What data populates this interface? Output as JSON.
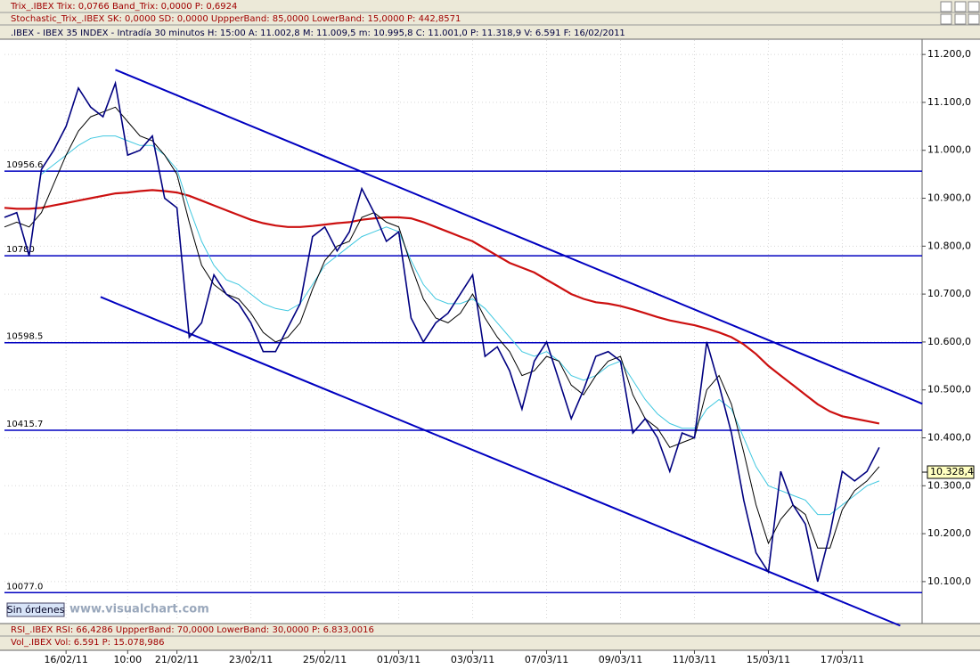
{
  "chart_data": {
    "type": "line",
    "header": {
      "trix": "Trix_.IBEX Trix: 0,0766  Band_Trix: 0,0000  P: 0,6924",
      "stochastic": "Stochastic_Trix_.IBEX SK: 0,0000  SD: 0,0000  UppperBand: 85,0000  LowerBand: 15,0000  P: 442,8571",
      "instrument": ".IBEX - IBEX 35 INDEX - Intradía 30 minutos  H: 15:00  A: 11.002,8  M: 11.009,5  m: 10.995,8  C: 11.001,0  P: 11.318,9  V: 6.591  F: 16/02/2011"
    },
    "footer": {
      "orders": "Sin órdenes",
      "site": "www.visualchart.com",
      "rsi": "RSI_.IBEX RSI: 66,4286  UppperBand: 70,0000  LowerBand: 30,0000  P: 6.833,0016",
      "volume": "Vol_.IBEX Vol: 6.591  P: 15.078,986"
    },
    "categories": [
      null,
      null,
      null,
      null,
      null,
      "16/02/11",
      null,
      null,
      null,
      null,
      "10:00",
      null,
      null,
      null,
      "21/02/11",
      null,
      null,
      null,
      null,
      null,
      "23/02/11",
      null,
      null,
      null,
      null,
      null,
      "25/02/11",
      null,
      null,
      null,
      null,
      null,
      "01/03/11",
      null,
      null,
      null,
      null,
      null,
      "03/03/11",
      null,
      null,
      null,
      null,
      null,
      "07/03/11",
      null,
      null,
      null,
      null,
      null,
      "09/03/11",
      null,
      null,
      null,
      null,
      null,
      "11/03/11",
      null,
      null,
      null,
      null,
      null,
      "15/03/11",
      null,
      null,
      null,
      null,
      null,
      "17/03/11",
      null,
      null,
      null
    ],
    "series": [
      {
        "color": "#000080",
        "values": [
          10860,
          10870,
          10780,
          10960,
          11000,
          11050,
          11130,
          11090,
          11070,
          11140,
          10990,
          11000,
          11030,
          10900,
          10880,
          10610,
          10640,
          10740,
          10700,
          10680,
          10640,
          10580,
          10580,
          10630,
          10680,
          10820,
          10840,
          10790,
          10830,
          10920,
          10870,
          10810,
          10830,
          10650,
          10600,
          10640,
          10660,
          10700,
          10740,
          10570,
          10590,
          10540,
          10460,
          10560,
          10600,
          10520,
          10440,
          10500,
          10570,
          10580,
          10560,
          10410,
          10440,
          10400,
          10330,
          10410,
          10400,
          10600,
          10510,
          10410,
          10270,
          10160,
          10120,
          10330,
          10260,
          10220,
          10100,
          10200,
          10330,
          10310,
          10330,
          10380
        ]
      },
      {
        "color": "#cc1010",
        "values": [
          10880,
          10878,
          10878,
          10880,
          10885,
          10890,
          10895,
          10900,
          10905,
          10910,
          10912,
          10915,
          10917,
          10915,
          10912,
          10905,
          10895,
          10885,
          10875,
          10865,
          10855,
          10848,
          10843,
          10840,
          10840,
          10842,
          10845,
          10848,
          10850,
          10855,
          10858,
          10860,
          10860,
          10858,
          10850,
          10840,
          10830,
          10820,
          10810,
          10795,
          10780,
          10765,
          10755,
          10745,
          10730,
          10715,
          10700,
          10690,
          10683,
          10680,
          10675,
          10668,
          10660,
          10652,
          10645,
          10640,
          10635,
          10628,
          10620,
          10610,
          10595,
          10575,
          10550,
          10530,
          10510,
          10490,
          10470,
          10455,
          10445,
          10440,
          10435,
          10430
        ]
      },
      {
        "color": "#40c8e0",
        "values": [
          null,
          null,
          null,
          10950,
          10970,
          10990,
          11010,
          11025,
          11030,
          11030,
          11020,
          11010,
          11010,
          10990,
          10960,
          10880,
          10810,
          10760,
          10730,
          10720,
          10700,
          10680,
          10670,
          10665,
          10680,
          10720,
          10760,
          10780,
          10800,
          10820,
          10830,
          10840,
          10830,
          10770,
          10720,
          10690,
          10680,
          10680,
          10690,
          10670,
          10640,
          10610,
          10580,
          10570,
          10580,
          10560,
          10530,
          10520,
          10530,
          10550,
          10560,
          10520,
          10480,
          10450,
          10430,
          10420,
          10420,
          10460,
          10480,
          10460,
          10400,
          10340,
          10300,
          10290,
          10280,
          10270,
          10240,
          10240,
          10260,
          10280,
          10300,
          10310
        ]
      },
      {
        "color": "#000000",
        "values": [
          10840,
          10850,
          10840,
          10870,
          10930,
          10990,
          11040,
          11070,
          11080,
          11090,
          11060,
          11030,
          11020,
          10990,
          10950,
          10850,
          10760,
          10720,
          10700,
          10690,
          10660,
          10620,
          10600,
          10610,
          10640,
          10710,
          10770,
          10800,
          10810,
          10860,
          10870,
          10850,
          10840,
          10760,
          10690,
          10650,
          10640,
          10660,
          10700,
          10650,
          10610,
          10580,
          10530,
          10540,
          10570,
          10560,
          10510,
          10490,
          10530,
          10560,
          10570,
          10490,
          10440,
          10420,
          10380,
          10390,
          10400,
          10500,
          10530,
          10470,
          10370,
          10260,
          10180,
          10230,
          10260,
          10240,
          10170,
          10170,
          10250,
          10290,
          10310,
          10340
        ]
      }
    ],
    "hlines": [
      10956.6,
      10780,
      10598.5,
      10415.7,
      {
        "value": 10077,
        "label": "10077.0"
      }
    ],
    "trendlines": [
      {
        "start": [
          9,
          11168
        ],
        "end": [
          74.5,
          10471
        ]
      },
      {
        "start": [
          7.8,
          10694
        ],
        "end": [
          72.7,
          10008
        ]
      }
    ],
    "last_price": {
      "value": 10328.4,
      "label": "10.328,4"
    },
    "ylim": [
      10018,
      11230
    ],
    "yticks": [
      {
        "value": 11200,
        "label": "11.200,0"
      },
      {
        "value": 11100,
        "label": "11.100,0"
      },
      {
        "value": 11000,
        "label": "11.000,0"
      },
      {
        "value": 10900,
        "label": "10.900,0"
      },
      {
        "value": 10800,
        "label": "10.800,0"
      },
      {
        "value": 10700,
        "label": "10.700,0"
      },
      {
        "value": 10600,
        "label": "10.600,0"
      },
      {
        "value": 10500,
        "label": "10.500,0"
      },
      {
        "value": 10400,
        "label": "10.400,0"
      },
      {
        "value": 10300,
        "label": "10.300,0"
      },
      {
        "value": 10200,
        "label": "10.200,0"
      },
      {
        "value": 10100,
        "label": "10.100,0"
      }
    ],
    "grid": true
  }
}
